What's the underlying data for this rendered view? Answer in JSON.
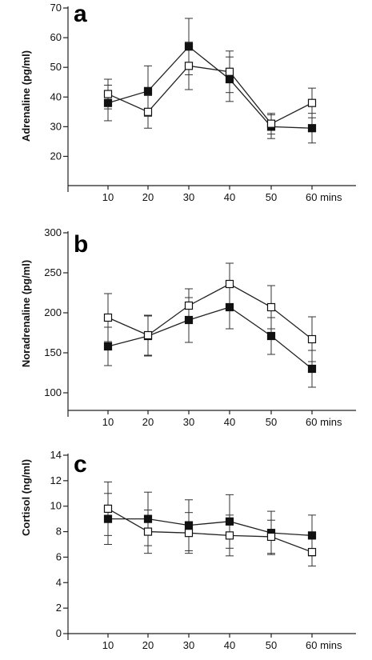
{
  "chart_data": [
    {
      "type": "line",
      "panel_label": "a",
      "ylabel": "Adrenaline (pg/ml)",
      "xlabel_unit": "mins",
      "x": [
        10,
        20,
        30,
        40,
        50,
        60
      ],
      "x_tick_labels": [
        "10",
        "20",
        "30",
        "40",
        "50",
        "60 mins"
      ],
      "ylim": [
        15,
        70
      ],
      "y_ticks": [
        20,
        30,
        40,
        50,
        60,
        70
      ],
      "series": [
        {
          "marker": "filled-square",
          "values": [
            38,
            42,
            57,
            46,
            30,
            29.5
          ],
          "err": [
            6,
            8.5,
            9.5,
            7.5,
            4,
            5
          ]
        },
        {
          "marker": "open-square",
          "values": [
            41,
            35,
            50.5,
            48.5,
            31,
            38
          ],
          "err": [
            5,
            5.5,
            8,
            7,
            3.5,
            5
          ]
        }
      ]
    },
    {
      "type": "line",
      "panel_label": "b",
      "ylabel": "Noradrenaline (pg/ml)",
      "xlabel_unit": "mins",
      "x": [
        10,
        20,
        30,
        40,
        50,
        60
      ],
      "x_tick_labels": [
        "10",
        "20",
        "30",
        "40",
        "50",
        "60 mins"
      ],
      "ylim": [
        95,
        300
      ],
      "y_ticks": [
        100,
        150,
        200,
        250,
        300
      ],
      "series": [
        {
          "marker": "filled-square",
          "values": [
            158,
            171,
            191,
            207,
            171,
            130
          ],
          "err": [
            24,
            25,
            28,
            27,
            23,
            23
          ]
        },
        {
          "marker": "open-square",
          "values": [
            194,
            172,
            209,
            236,
            207,
            167
          ],
          "err": [
            30,
            25,
            21,
            26,
            27,
            28
          ]
        }
      ]
    },
    {
      "type": "line",
      "panel_label": "c",
      "ylabel": "Cortisol (ng/ml)",
      "xlabel_unit": "mins",
      "x": [
        10,
        20,
        30,
        40,
        50,
        60
      ],
      "x_tick_labels": [
        "10",
        "20",
        "30",
        "40",
        "50",
        "60 mins"
      ],
      "ylim": [
        0,
        14
      ],
      "y_ticks": [
        0,
        2,
        4,
        6,
        8,
        10,
        12,
        14
      ],
      "series": [
        {
          "marker": "filled-square",
          "values": [
            9.0,
            9.0,
            8.5,
            8.8,
            7.9,
            7.7
          ],
          "err": [
            2.0,
            2.1,
            2.0,
            2.1,
            1.7,
            1.6
          ]
        },
        {
          "marker": "open-square",
          "values": [
            9.8,
            8.0,
            7.9,
            7.7,
            7.6,
            6.4
          ],
          "err": [
            2.1,
            1.7,
            1.6,
            1.6,
            1.3,
            1.1
          ]
        }
      ]
    }
  ],
  "colors": {
    "axis": "#222222",
    "filled_marker": "#111111",
    "open_marker_fill": "#ffffff"
  }
}
